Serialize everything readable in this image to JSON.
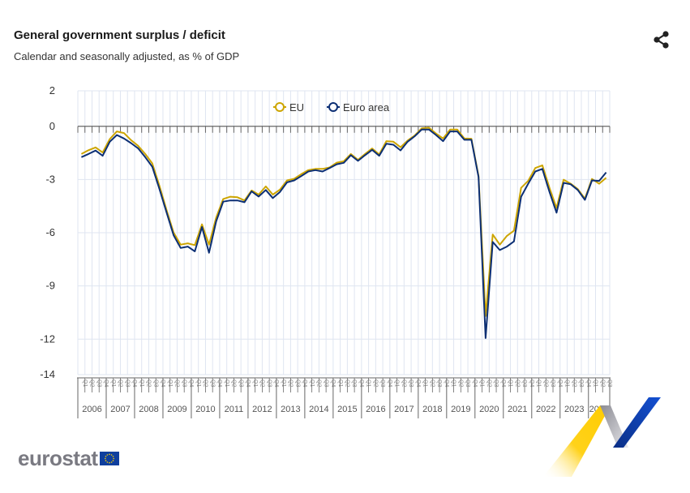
{
  "header": {
    "title": "General government surplus / deficit",
    "subtitle": "Calendar and seasonally adjusted, as % of GDP",
    "share_icon": "share-icon"
  },
  "logo": {
    "text": "eurostat",
    "flag": "eu-flag"
  },
  "colors": {
    "eu": "#cda500",
    "euro_area": "#0c2f74",
    "grid": "#dfe5f1",
    "axis": "#666666"
  },
  "chart_data": {
    "type": "line",
    "title": "General government surplus / deficit",
    "subtitle": "Calendar and seasonally adjusted, as % of GDP",
    "xlabel": "",
    "ylabel": "",
    "ylim": [
      -14,
      2
    ],
    "yticks": [
      2,
      0,
      -3,
      -6,
      -9,
      -12,
      -14
    ],
    "grid": true,
    "legend_position": "top-center",
    "years": [
      "2006",
      "2007",
      "2008",
      "2009",
      "2010",
      "2011",
      "2012",
      "2013",
      "2014",
      "2015",
      "2016",
      "2017",
      "2018",
      "2019",
      "2020",
      "2021",
      "2022",
      "2023",
      "2024"
    ],
    "quarter_labels": [
      "Q1",
      "Q2",
      "Q3",
      "Q4"
    ],
    "last_year_quarters": 3,
    "series": [
      {
        "name": "EU",
        "values": [
          -1.56,
          -1.35,
          -1.19,
          -1.48,
          -0.72,
          -0.29,
          -0.38,
          -0.78,
          -1.1,
          -1.56,
          -2.09,
          -3.35,
          -4.7,
          -5.99,
          -6.67,
          -6.6,
          -6.7,
          -5.53,
          -6.67,
          -5.15,
          -4.1,
          -3.97,
          -4.0,
          -4.18,
          -3.62,
          -3.85,
          -3.39,
          -3.85,
          -3.57,
          -3.05,
          -2.96,
          -2.7,
          -2.47,
          -2.4,
          -2.4,
          -2.32,
          -2.05,
          -1.97,
          -1.56,
          -1.89,
          -1.56,
          -1.25,
          -1.59,
          -0.84,
          -0.87,
          -1.18,
          -0.8,
          -0.52,
          -0.11,
          -0.08,
          -0.41,
          -0.69,
          -0.18,
          -0.18,
          -0.69,
          -0.7,
          -2.8,
          -10.7,
          -6.1,
          -6.67,
          -6.18,
          -5.88,
          -3.47,
          -3.08,
          -2.35,
          -2.2,
          -3.47,
          -4.61,
          -3.01,
          -3.24,
          -3.54,
          -4.08,
          -2.97,
          -3.24,
          -2.9
        ]
      },
      {
        "name": "Euro area",
        "values": [
          -1.74,
          -1.56,
          -1.37,
          -1.66,
          -0.87,
          -0.49,
          -0.69,
          -0.95,
          -1.24,
          -1.74,
          -2.28,
          -3.53,
          -4.84,
          -6.14,
          -6.86,
          -6.78,
          -7.05,
          -5.68,
          -7.13,
          -5.36,
          -4.25,
          -4.18,
          -4.18,
          -4.28,
          -3.67,
          -3.96,
          -3.59,
          -4.05,
          -3.7,
          -3.16,
          -3.05,
          -2.81,
          -2.55,
          -2.47,
          -2.55,
          -2.35,
          -2.14,
          -2.06,
          -1.63,
          -1.95,
          -1.63,
          -1.33,
          -1.66,
          -0.98,
          -1.04,
          -1.36,
          -0.87,
          -0.56,
          -0.18,
          -0.18,
          -0.49,
          -0.84,
          -0.29,
          -0.29,
          -0.76,
          -0.76,
          -2.86,
          -11.94,
          -6.52,
          -6.98,
          -6.78,
          -6.49,
          -3.97,
          -3.24,
          -2.55,
          -2.4,
          -3.7,
          -4.87,
          -3.19,
          -3.27,
          -3.59,
          -4.15,
          -3.05,
          -3.08,
          -2.6
        ]
      }
    ]
  }
}
